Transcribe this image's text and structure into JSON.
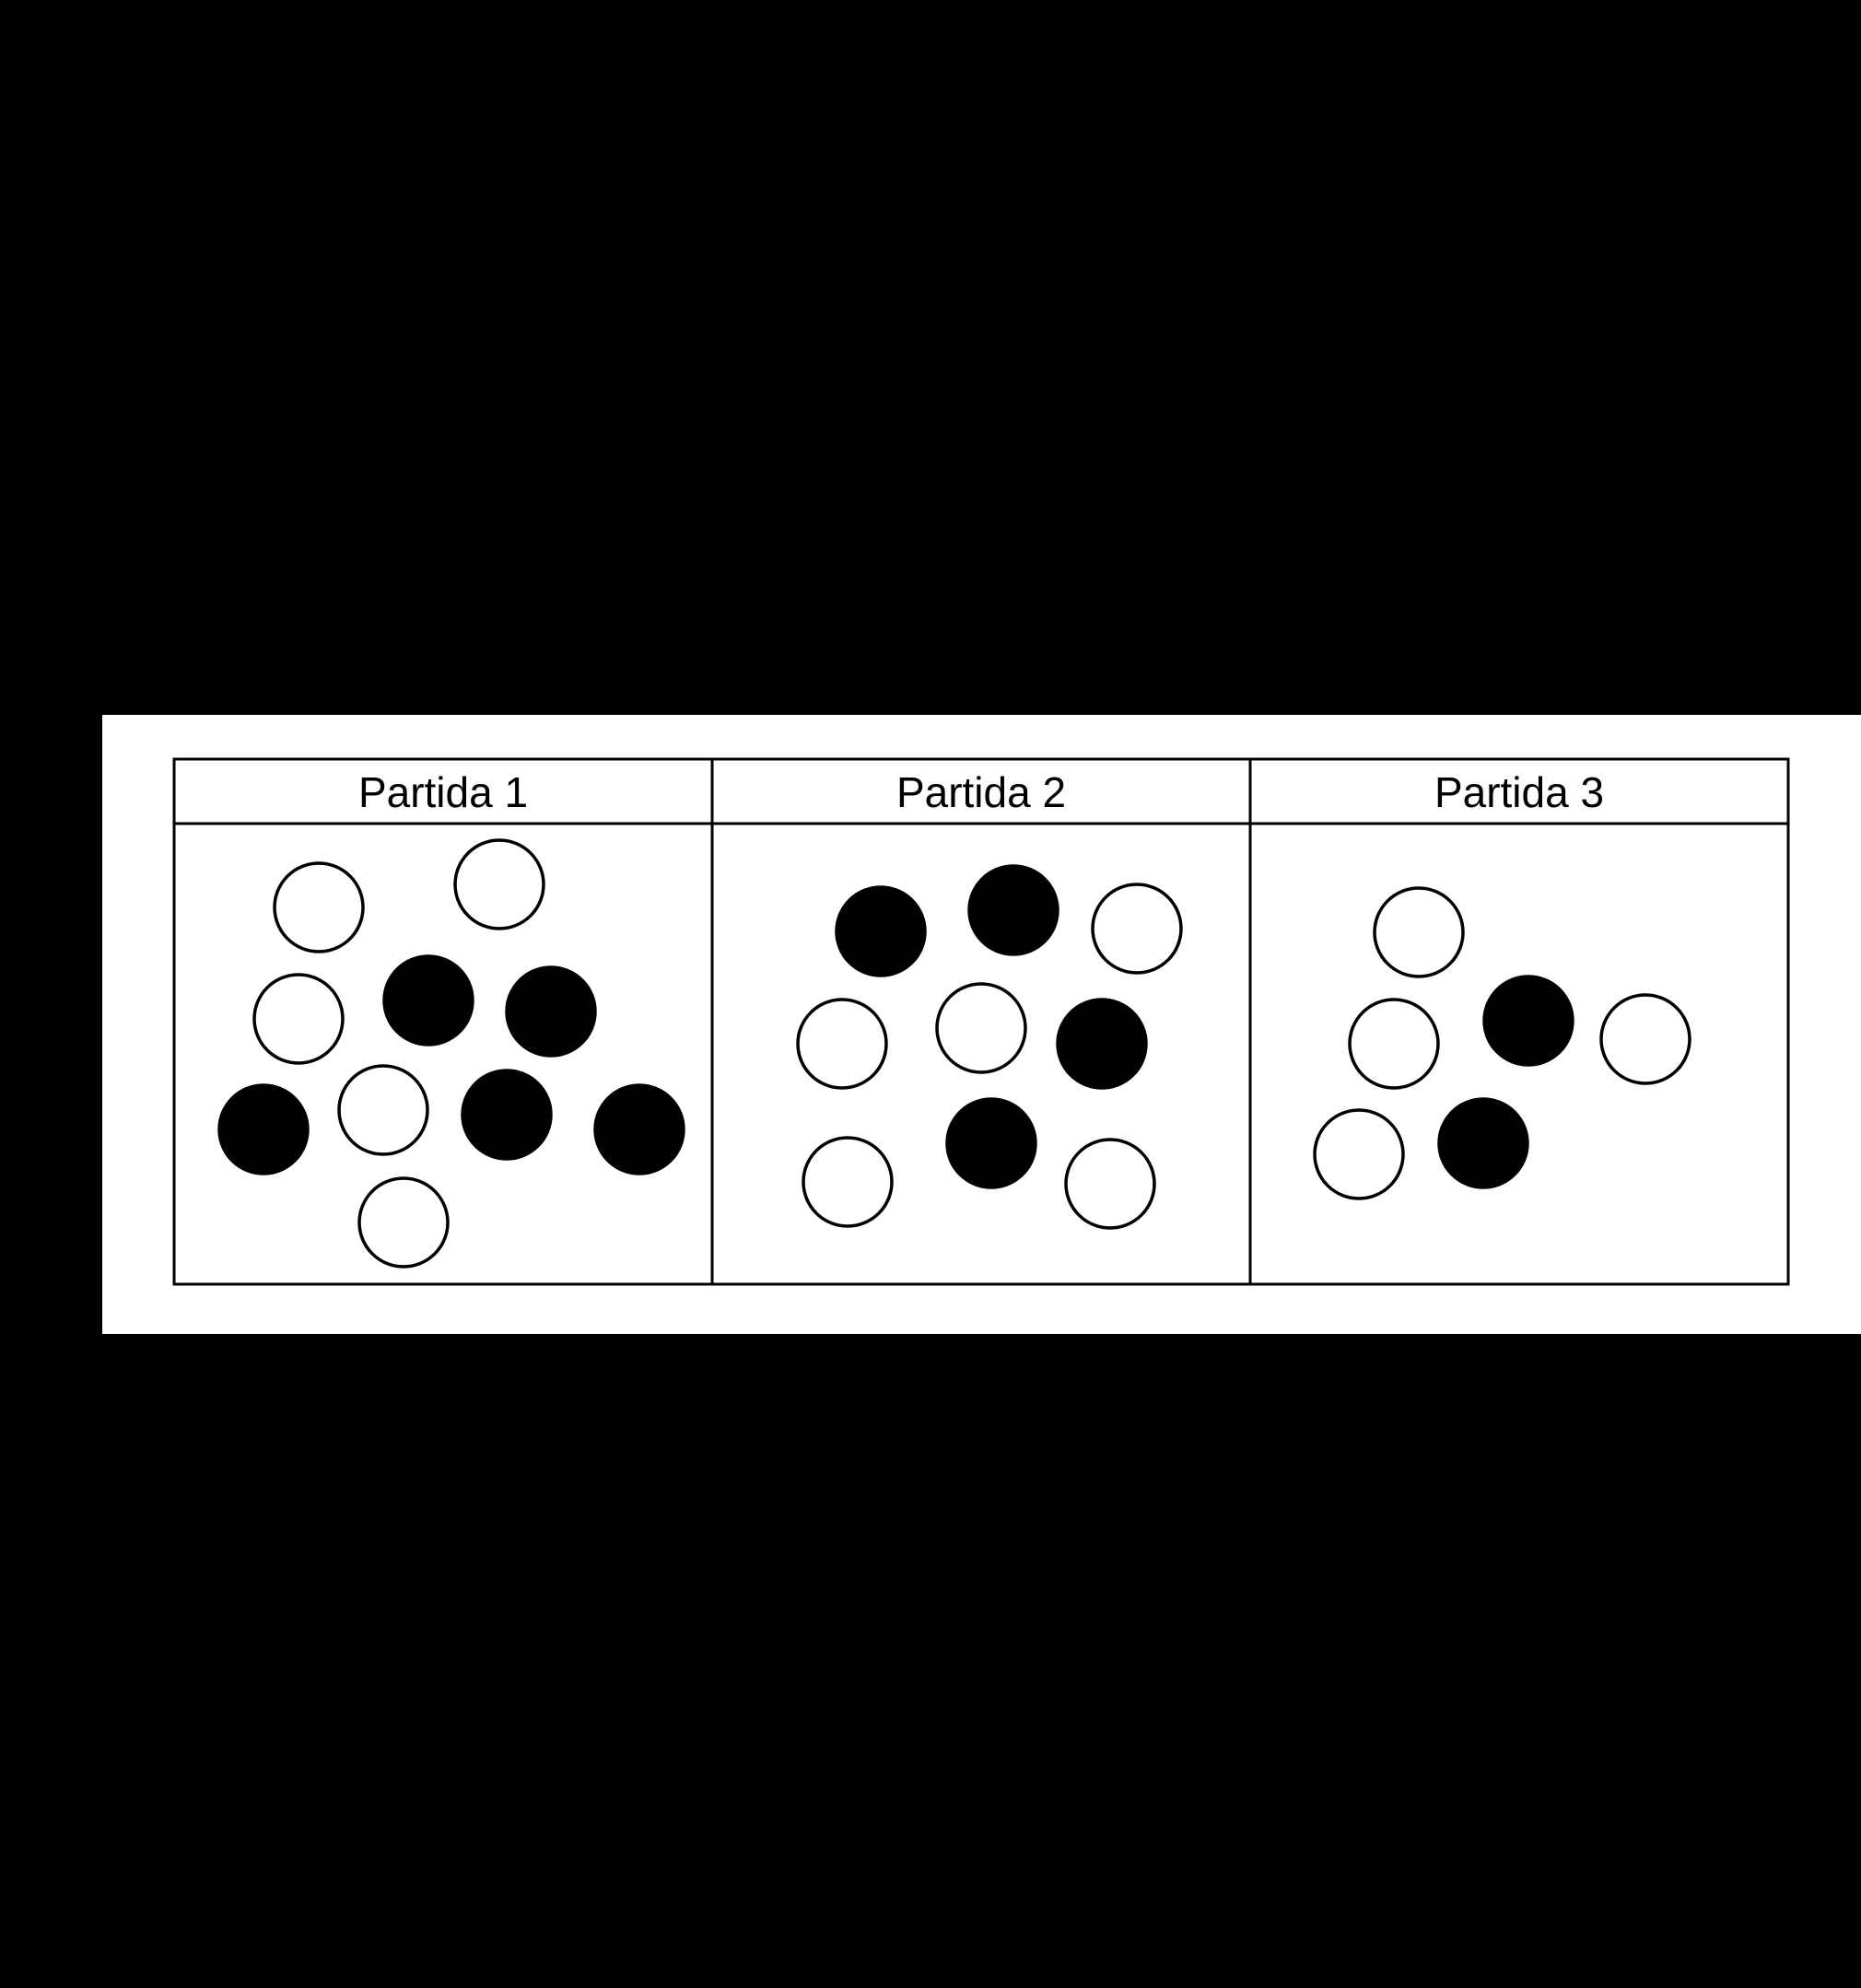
{
  "columns": [
    {
      "label": "Partida 1",
      "white_count": 5,
      "black_count": 5,
      "marbles": [
        "white",
        "white",
        "white",
        "black",
        "black",
        "black",
        "white",
        "black",
        "black",
        "white"
      ]
    },
    {
      "label": "Partida 2",
      "white_count": 5,
      "black_count": 4,
      "marbles": [
        "black",
        "black",
        "white",
        "white",
        "white",
        "black",
        "white",
        "black",
        "white"
      ]
    },
    {
      "label": "Partida 3",
      "white_count": 4,
      "black_count": 2,
      "marbles": [
        "white",
        "white",
        "black",
        "white",
        "white",
        "black"
      ]
    }
  ],
  "colors": {
    "background": "#000000",
    "panel": "#ffffff",
    "line": "#000000",
    "black_marble": "#000000",
    "white_marble": "#ffffff"
  }
}
